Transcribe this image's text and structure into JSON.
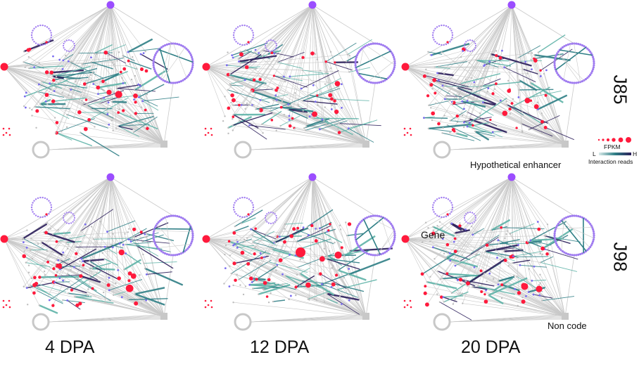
{
  "figure": {
    "row_labels": [
      "J85",
      "J98"
    ],
    "column_labels": [
      "4 DPA",
      "12 DPA",
      "20 DPA"
    ],
    "annotations": {
      "hypothetical_enhancer": "Hypothetical enhancer",
      "gene": "Gene",
      "non_code": "Non code"
    },
    "legend": {
      "fpkm_label": "FPKM",
      "low": "L",
      "high": "H",
      "interaction_reads": "Interaction reads"
    }
  },
  "colors": {
    "gene_node": "#ff1a3c",
    "hub_node": "#9b4dff",
    "ring_node": "#a07cf0",
    "enhancer_node": "#c8c8c8",
    "edge_gray": "#c9c9c9",
    "edge_low": "#5fb3a8",
    "edge_mid": "#2f7f86",
    "edge_high": "#2b1e5a",
    "gray_dot": "#bdbdbd",
    "purple_dot": "#7a6cf0"
  }
}
